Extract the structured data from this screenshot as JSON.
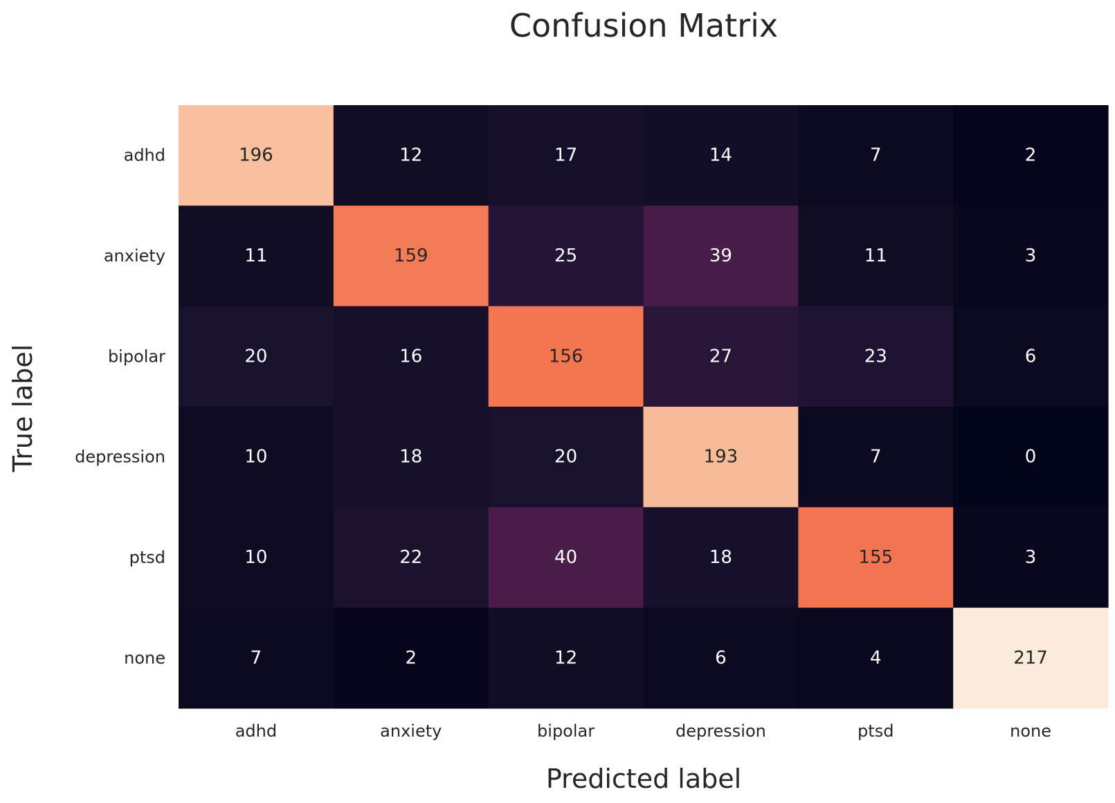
{
  "chart_data": {
    "type": "heatmap",
    "title": "Confusion Matrix",
    "xlabel": "Predicted label",
    "ylabel": "True label",
    "x_categories": [
      "adhd",
      "anxiety",
      "bipolar",
      "depression",
      "ptsd",
      "none"
    ],
    "y_categories": [
      "adhd",
      "anxiety",
      "bipolar",
      "depression",
      "ptsd",
      "none"
    ],
    "values": [
      [
        196,
        12,
        17,
        14,
        7,
        2
      ],
      [
        11,
        159,
        25,
        39,
        11,
        3
      ],
      [
        20,
        16,
        156,
        27,
        23,
        6
      ],
      [
        10,
        18,
        20,
        193,
        7,
        0
      ],
      [
        10,
        22,
        40,
        18,
        155,
        3
      ],
      [
        7,
        2,
        12,
        6,
        4,
        217
      ]
    ],
    "colormap": "rocket",
    "value_range": [
      0,
      217
    ],
    "colorbar": false,
    "grid": false,
    "annotation_colors": {
      "dark_text": "#262626",
      "light_text": "#ffffff"
    }
  }
}
